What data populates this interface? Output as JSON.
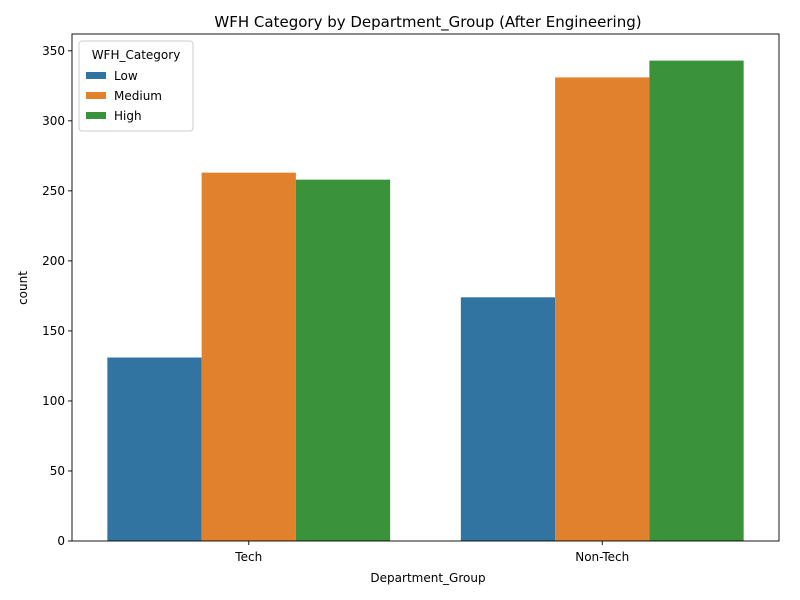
{
  "chart_data": {
    "type": "bar",
    "title": "WFH Category by Department_Group (After Engineering)",
    "xlabel": "Department_Group",
    "ylabel": "count",
    "categories": [
      "Tech",
      "Non-Tech"
    ],
    "ylim": [
      0,
      362
    ],
    "yticks": [
      0,
      50,
      100,
      150,
      200,
      250,
      300,
      350
    ],
    "grid": false,
    "legend": {
      "title": "WFH_Category",
      "position": "top-left"
    },
    "series": [
      {
        "name": "Low",
        "color": "#3274a1",
        "values": [
          131,
          174
        ]
      },
      {
        "name": "Medium",
        "color": "#e1812c",
        "values": [
          263,
          331
        ]
      },
      {
        "name": "High",
        "color": "#3a923a",
        "values": [
          258,
          343
        ]
      }
    ]
  }
}
